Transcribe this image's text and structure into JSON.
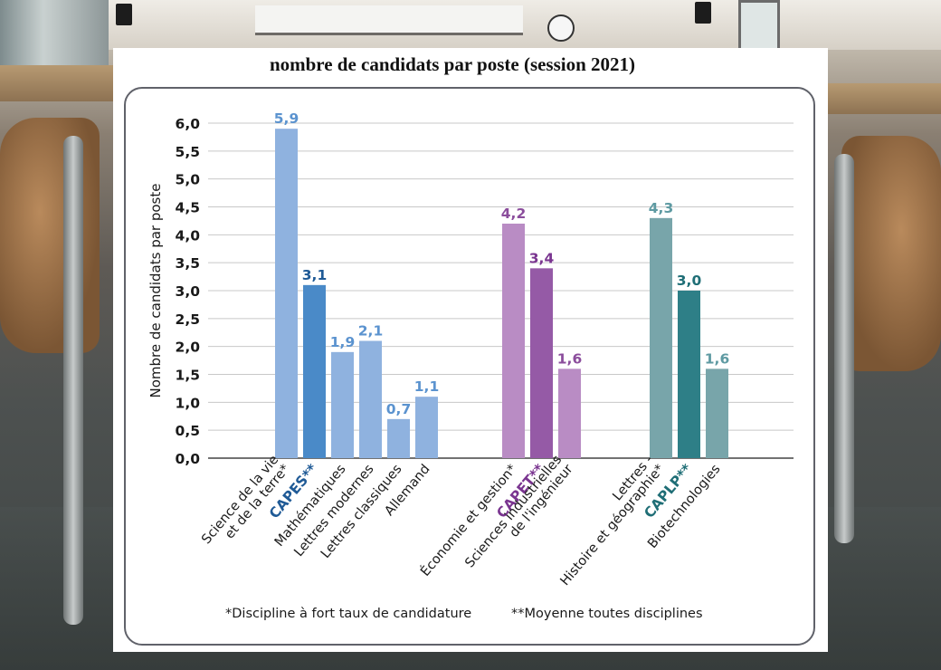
{
  "chart_data": {
    "type": "bar",
    "title": "nombre de candidats par poste (session 2021)",
    "ylabel": "Nombre de candidats par poste",
    "xlabel": "",
    "ylim": [
      0,
      6
    ],
    "yticks": [
      "0,0",
      "0,5",
      "1,0",
      "1,5",
      "2,0",
      "2,5",
      "3,0",
      "3,5",
      "4,0",
      "4,5",
      "5,0",
      "5,5",
      "6,0"
    ],
    "grid": true,
    "groups": [
      {
        "name": "CAPES**",
        "bars": [
          {
            "label": "Science de la vie\net de la terre*",
            "value": 5.9,
            "value_label": "5,9",
            "kind": "discipline"
          },
          {
            "label": "CAPES**",
            "value": 3.1,
            "value_label": "3,1",
            "kind": "average"
          },
          {
            "label": "Mathématiques",
            "value": 1.9,
            "value_label": "1,9",
            "kind": "discipline"
          },
          {
            "label": "Lettres modernes",
            "value": 2.1,
            "value_label": "2,1",
            "kind": "discipline"
          },
          {
            "label": "Lettres classiques",
            "value": 0.7,
            "value_label": "0,7",
            "kind": "discipline"
          },
          {
            "label": "Allemand",
            "value": 1.1,
            "value_label": "1,1",
            "kind": "discipline"
          }
        ]
      },
      {
        "name": "CAPET**",
        "bars": [
          {
            "label": "Économie et gestion*",
            "value": 4.2,
            "value_label": "4,2",
            "kind": "discipline"
          },
          {
            "label": "CAPET**",
            "value": 3.4,
            "value_label": "3,4",
            "kind": "average"
          },
          {
            "label": "Sciences industrielles\nde l'ingénieur",
            "value": 1.6,
            "value_label": "1,6",
            "kind": "discipline"
          }
        ]
      },
      {
        "name": "CAPLP**",
        "bars": [
          {
            "label": "Lettres -\nHistoire et géographie*",
            "value": 4.3,
            "value_label": "4,3",
            "kind": "discipline"
          },
          {
            "label": "CAPLP**",
            "value": 3.0,
            "value_label": "3,0",
            "kind": "average"
          },
          {
            "label": "Biotechnologies",
            "value": 1.6,
            "value_label": "1,6",
            "kind": "discipline"
          }
        ]
      }
    ],
    "colors": {
      "CAPES**": {
        "light": "#8fb2df",
        "dark": "#4a8ac8",
        "text": "#5b93cf",
        "avg_text": "#1f5a96"
      },
      "CAPET**": {
        "light": "#b98cc4",
        "dark": "#955aa6",
        "text": "#8b4d9c",
        "avg_text": "#7a3590"
      },
      "CAPLP**": {
        "light": "#78a5aa",
        "dark": "#2e7f87",
        "text": "#5e9aa2",
        "avg_text": "#1f6e76"
      }
    },
    "annotations": [
      "*Discipline à fort taux de candidature",
      "**Moyenne toutes disciplines"
    ]
  }
}
